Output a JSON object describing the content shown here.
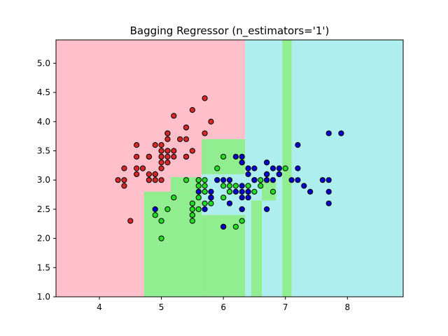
{
  "chart_data": {
    "type": "scatter",
    "title": "Bagging Regressor (n_estimators='1')",
    "xlabel": "",
    "ylabel": "",
    "xlim": [
      3.3,
      8.9
    ],
    "ylim": [
      1.0,
      5.4
    ],
    "xticks": [
      4,
      5,
      6,
      7,
      8
    ],
    "yticks": [
      1.0,
      1.5,
      2.0,
      2.5,
      3.0,
      3.5,
      4.0,
      4.5,
      5.0
    ],
    "xtick_labels": [
      "4",
      "5",
      "6",
      "7",
      "8"
    ],
    "ytick_labels": [
      "1.0",
      "1.5",
      "2.0",
      "2.5",
      "3.0",
      "3.5",
      "4.0",
      "4.5",
      "5.0"
    ],
    "grid": false,
    "legend": "none",
    "colors": {
      "region_class_0": "#ffc0cb",
      "region_class_1": "#90ee90",
      "region_class_2": "#afeeee",
      "point_class_0": "#d62728",
      "point_class_1": "#22dd22",
      "point_class_2": "#0000cc",
      "point_edge": "#000000"
    },
    "decision_regions": [
      {
        "class": 0,
        "x": [
          3.3,
          6.35
        ],
        "y": [
          1.0,
          5.4
        ]
      },
      {
        "class": 2,
        "x": [
          6.35,
          8.9
        ],
        "y": [
          1.0,
          5.4
        ]
      },
      {
        "class": 1,
        "x": [
          6.95,
          7.1
        ],
        "y": [
          1.0,
          5.4
        ]
      },
      {
        "class": 1,
        "x": [
          4.72,
          5.65
        ],
        "y": [
          1.0,
          2.8
        ]
      },
      {
        "class": 1,
        "x": [
          5.15,
          5.65
        ],
        "y": [
          2.8,
          3.05
        ]
      },
      {
        "class": 1,
        "x": [
          5.65,
          6.05
        ],
        "y": [
          1.0,
          2.4
        ]
      },
      {
        "class": 2,
        "x": [
          5.65,
          6.05
        ],
        "y": [
          2.4,
          3.1
        ]
      },
      {
        "class": 1,
        "x": [
          5.65,
          6.35
        ],
        "y": [
          3.1,
          3.7
        ]
      },
      {
        "class": 1,
        "x": [
          6.05,
          6.35
        ],
        "y": [
          1.0,
          3.1
        ]
      },
      {
        "class": 2,
        "x": [
          6.05,
          6.35
        ],
        "y": [
          2.4,
          3.1
        ]
      },
      {
        "class": 1,
        "x": [
          6.45,
          6.62
        ],
        "y": [
          1.0,
          2.65
        ]
      },
      {
        "class": 1,
        "x": [
          6.62,
          6.85
        ],
        "y": [
          2.65,
          3.0
        ]
      }
    ],
    "series": [
      {
        "class": 0,
        "points": [
          [
            5.1,
            3.5
          ],
          [
            4.9,
            3.0
          ],
          [
            4.7,
            3.2
          ],
          [
            4.6,
            3.1
          ],
          [
            5.0,
            3.6
          ],
          [
            5.4,
            3.9
          ],
          [
            4.6,
            3.4
          ],
          [
            5.0,
            3.4
          ],
          [
            4.4,
            2.9
          ],
          [
            4.9,
            3.1
          ],
          [
            5.4,
            3.7
          ],
          [
            4.8,
            3.4
          ],
          [
            4.8,
            3.0
          ],
          [
            4.3,
            3.0
          ],
          [
            5.8,
            4.0
          ],
          [
            5.7,
            4.4
          ],
          [
            5.4,
            3.9
          ],
          [
            5.1,
            3.5
          ],
          [
            5.7,
            3.8
          ],
          [
            5.1,
            3.8
          ],
          [
            5.4,
            3.4
          ],
          [
            5.1,
            3.7
          ],
          [
            4.6,
            3.6
          ],
          [
            5.1,
            3.3
          ],
          [
            4.8,
            3.4
          ],
          [
            5.0,
            3.0
          ],
          [
            5.0,
            3.4
          ],
          [
            5.2,
            3.5
          ],
          [
            5.2,
            3.4
          ],
          [
            4.7,
            3.2
          ],
          [
            4.8,
            3.1
          ],
          [
            5.4,
            3.4
          ],
          [
            5.2,
            4.1
          ],
          [
            5.5,
            4.2
          ],
          [
            4.9,
            3.1
          ],
          [
            5.0,
            3.2
          ],
          [
            5.5,
            3.5
          ],
          [
            4.9,
            3.6
          ],
          [
            4.4,
            3.0
          ],
          [
            5.1,
            3.4
          ],
          [
            5.0,
            3.5
          ],
          [
            4.5,
            2.3
          ],
          [
            4.4,
            3.2
          ],
          [
            5.0,
            3.5
          ],
          [
            5.1,
            3.8
          ],
          [
            4.8,
            3.0
          ],
          [
            5.1,
            3.8
          ],
          [
            4.6,
            3.2
          ],
          [
            5.3,
            3.7
          ],
          [
            5.0,
            3.3
          ]
        ]
      },
      {
        "class": 1,
        "points": [
          [
            7.0,
            3.2
          ],
          [
            6.4,
            3.2
          ],
          [
            6.9,
            3.1
          ],
          [
            5.5,
            2.3
          ],
          [
            6.5,
            2.8
          ],
          [
            5.7,
            2.8
          ],
          [
            6.3,
            3.3
          ],
          [
            4.9,
            2.4
          ],
          [
            6.6,
            2.9
          ],
          [
            5.2,
            2.7
          ],
          [
            5.0,
            2.0
          ],
          [
            5.9,
            3.0
          ],
          [
            6.0,
            2.2
          ],
          [
            6.1,
            2.9
          ],
          [
            5.6,
            2.9
          ],
          [
            6.7,
            3.1
          ],
          [
            5.6,
            3.0
          ],
          [
            5.8,
            2.7
          ],
          [
            6.2,
            2.2
          ],
          [
            5.6,
            2.5
          ],
          [
            5.9,
            3.2
          ],
          [
            6.1,
            2.8
          ],
          [
            6.3,
            2.5
          ],
          [
            6.1,
            2.8
          ],
          [
            6.4,
            2.9
          ],
          [
            6.6,
            3.0
          ],
          [
            6.8,
            2.8
          ],
          [
            6.7,
            3.0
          ],
          [
            6.0,
            2.9
          ],
          [
            5.7,
            2.6
          ],
          [
            5.5,
            2.4
          ],
          [
            5.5,
            2.4
          ],
          [
            5.8,
            2.7
          ],
          [
            6.0,
            2.7
          ],
          [
            5.4,
            3.0
          ],
          [
            6.0,
            3.4
          ],
          [
            6.7,
            3.1
          ],
          [
            6.3,
            2.3
          ],
          [
            5.6,
            3.0
          ],
          [
            5.5,
            2.5
          ],
          [
            5.5,
            2.6
          ],
          [
            6.1,
            3.0
          ],
          [
            5.8,
            2.6
          ],
          [
            5.0,
            2.3
          ],
          [
            5.6,
            2.7
          ],
          [
            5.7,
            3.0
          ],
          [
            5.7,
            2.9
          ],
          [
            6.2,
            2.9
          ],
          [
            5.1,
            2.5
          ],
          [
            5.7,
            2.8
          ]
        ]
      },
      {
        "class": 2,
        "points": [
          [
            6.3,
            3.3
          ],
          [
            5.8,
            2.7
          ],
          [
            7.1,
            3.0
          ],
          [
            6.3,
            2.9
          ],
          [
            6.5,
            3.0
          ],
          [
            7.6,
            3.0
          ],
          [
            4.9,
            2.5
          ],
          [
            7.3,
            2.9
          ],
          [
            6.7,
            2.5
          ],
          [
            7.2,
            3.6
          ],
          [
            6.5,
            3.2
          ],
          [
            6.4,
            2.7
          ],
          [
            6.8,
            3.0
          ],
          [
            5.7,
            2.5
          ],
          [
            5.8,
            2.8
          ],
          [
            6.4,
            3.2
          ],
          [
            6.5,
            3.0
          ],
          [
            7.7,
            3.8
          ],
          [
            7.7,
            2.6
          ],
          [
            6.0,
            2.2
          ],
          [
            6.9,
            3.2
          ],
          [
            5.6,
            2.8
          ],
          [
            7.7,
            2.8
          ],
          [
            6.3,
            2.7
          ],
          [
            6.7,
            3.3
          ],
          [
            7.2,
            3.2
          ],
          [
            6.2,
            2.8
          ],
          [
            6.1,
            3.0
          ],
          [
            6.4,
            2.8
          ],
          [
            7.2,
            3.0
          ],
          [
            7.4,
            2.8
          ],
          [
            7.9,
            3.8
          ],
          [
            6.4,
            2.8
          ],
          [
            6.3,
            2.8
          ],
          [
            6.1,
            2.6
          ],
          [
            7.7,
            3.0
          ],
          [
            6.3,
            3.4
          ],
          [
            6.4,
            3.1
          ],
          [
            6.0,
            3.0
          ],
          [
            6.9,
            3.1
          ],
          [
            6.7,
            3.1
          ],
          [
            6.9,
            3.1
          ],
          [
            5.8,
            2.7
          ],
          [
            6.8,
            3.2
          ],
          [
            6.7,
            3.3
          ],
          [
            6.7,
            3.0
          ],
          [
            6.3,
            2.5
          ],
          [
            6.5,
            3.0
          ],
          [
            6.2,
            3.4
          ],
          [
            5.9,
            3.0
          ]
        ]
      }
    ]
  }
}
